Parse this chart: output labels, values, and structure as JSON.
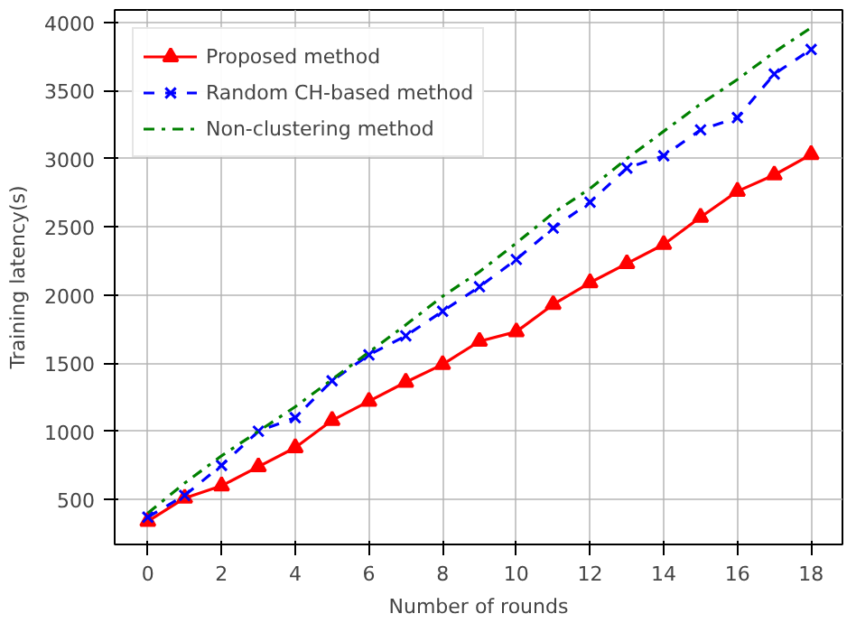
{
  "chart_data": {
    "type": "line",
    "xlabel": "Number of rounds",
    "ylabel": "Training latency(s)",
    "x": [
      0,
      1,
      2,
      3,
      4,
      5,
      6,
      7,
      8,
      9,
      10,
      11,
      12,
      13,
      14,
      15,
      16,
      17,
      18
    ],
    "xlim": [
      -0.9,
      18.85
    ],
    "xticks": [
      0,
      2,
      4,
      6,
      8,
      10,
      12,
      14,
      16,
      18
    ],
    "ylim": [
      170,
      4090
    ],
    "yticks": [
      500,
      1000,
      1500,
      2000,
      2500,
      3000,
      3500,
      4000
    ],
    "grid": true,
    "legend": "top left",
    "series": [
      {
        "name": "Proposed method",
        "color": "#ff0000",
        "marker": "triangle",
        "line_style": "solid",
        "values": [
          340,
          510,
          600,
          740,
          880,
          1080,
          1220,
          1360,
          1490,
          1660,
          1730,
          1930,
          2090,
          2230,
          2370,
          2570,
          2760,
          2880,
          3030
        ]
      },
      {
        "name": "Random CH-based method",
        "color": "#0000ff",
        "marker": "cross",
        "line_style": "dashed",
        "values": [
          370,
          530,
          750,
          1000,
          1100,
          1370,
          1560,
          1700,
          1880,
          2060,
          2260,
          2490,
          2680,
          2930,
          3020,
          3210,
          3300,
          3620,
          3800
        ]
      },
      {
        "name": "Non-clustering method",
        "color": "#008000",
        "marker": "none",
        "line_style": "dashdot",
        "values": [
          400,
          620,
          820,
          1000,
          1180,
          1380,
          1580,
          1780,
          1990,
          2170,
          2380,
          2600,
          2780,
          3000,
          3200,
          3400,
          3580,
          3780,
          3960
        ]
      }
    ]
  }
}
